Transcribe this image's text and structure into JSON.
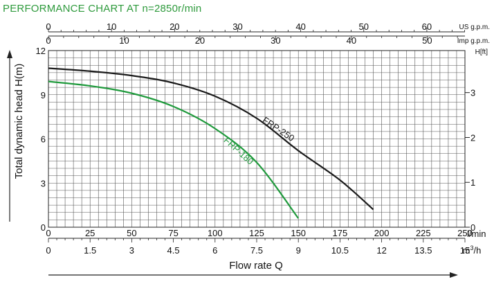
{
  "title": "PERFORMANCE CHART AT n=2850r/min",
  "colors": {
    "frp250": "#1a1a1a",
    "frp180": "#1f9a3c",
    "title": "#2e9a3c",
    "grid": "#555555"
  },
  "chart_data": {
    "type": "line",
    "title": "PERFORMANCE CHART AT n=2850r/min",
    "xlabel": "Flow rate Q",
    "ylabel": "Total dynamic head H(m)",
    "xlim": [
      0,
      250
    ],
    "ylim": [
      0,
      12
    ],
    "grid": true,
    "x_axes": [
      {
        "unit": "US g.p.m.",
        "ticks": [
          "0",
          "10",
          "20",
          "30",
          "40",
          "50",
          "60"
        ],
        "values": [
          0,
          10,
          20,
          30,
          40,
          50,
          60
        ]
      },
      {
        "unit": "Imp g.p.m.",
        "ticks": [
          "0",
          "10",
          "20",
          "30",
          "40",
          "50"
        ],
        "values": [
          0,
          10,
          20,
          30,
          40,
          50
        ]
      },
      {
        "unit": "l/min",
        "ticks": [
          "0",
          "25",
          "50",
          "75",
          "100",
          "125",
          "150",
          "175",
          "200",
          "225",
          "250"
        ],
        "values": [
          0,
          25,
          50,
          75,
          100,
          125,
          150,
          175,
          200,
          225,
          250
        ]
      },
      {
        "unit": "m³/h",
        "unit_base": "m",
        "unit_sup": "3",
        "unit_tail": "/h",
        "ticks": [
          "0",
          "1.5",
          "3",
          "4.5",
          "6",
          "7.5",
          "9",
          "10.5",
          "12",
          "13.5",
          "15"
        ],
        "values": [
          0,
          1.5,
          3,
          4.5,
          6,
          7.5,
          9,
          10.5,
          12,
          13.5,
          15
        ]
      }
    ],
    "y_axes": [
      {
        "unit": "H(m)",
        "ticks": [
          "0",
          "3",
          "6",
          "9",
          "12"
        ],
        "values": [
          0,
          3,
          6,
          9,
          12
        ]
      },
      {
        "unit": "H[ft]",
        "ticks": [
          "0",
          "1",
          "2",
          "3"
        ],
        "values": [
          0,
          1,
          2,
          3
        ]
      }
    ],
    "series": [
      {
        "name": "FRP-250",
        "x": [
          0,
          25,
          50,
          75,
          100,
          125,
          150,
          175,
          195
        ],
        "y": [
          10.8,
          10.6,
          10.3,
          9.8,
          8.9,
          7.4,
          5.2,
          3.2,
          1.2
        ]
      },
      {
        "name": "FRP-180",
        "x": [
          0,
          25,
          50,
          75,
          100,
          125,
          150
        ],
        "y": [
          9.9,
          9.6,
          9.1,
          8.2,
          6.7,
          4.4,
          0.6
        ]
      }
    ]
  }
}
